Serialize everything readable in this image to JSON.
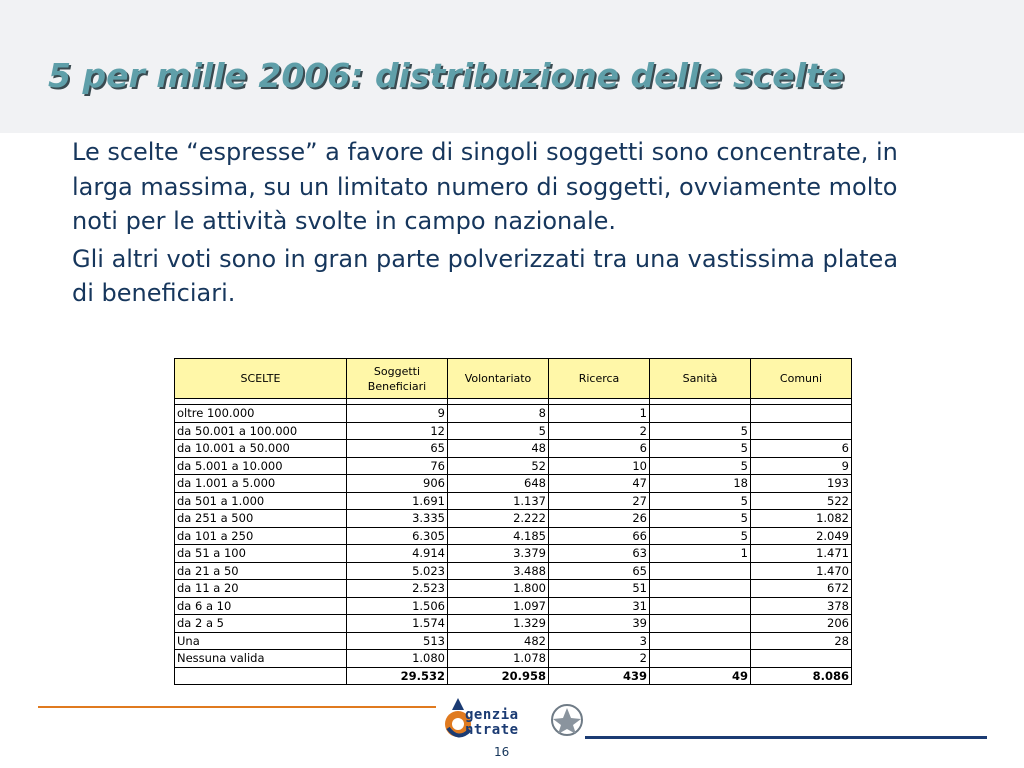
{
  "slide": {
    "title": "5 per mille 2006: distribuzione delle scelte",
    "paragraphs": [
      "Le scelte “espresse” a favore di singoli soggetti sono concentrate, in larga massima, su un limitato numero di soggetti, ovviamente molto noti per le attività svolte in campo nazionale.",
      "Gli altri voti sono in gran parte polverizzati tra una vastissima platea di beneficiari."
    ],
    "page_number": "16"
  },
  "table": {
    "headers": [
      "SCELTE",
      "Soggetti Beneficiari",
      "Volontariato",
      "Ricerca",
      "Sanità",
      "Comuni"
    ],
    "rows": [
      [
        "oltre 100.000",
        "9",
        "8",
        "1",
        "",
        ""
      ],
      [
        "da 50.001 a 100.000",
        "12",
        "5",
        "2",
        "5",
        ""
      ],
      [
        "da 10.001 a 50.000",
        "65",
        "48",
        "6",
        "5",
        "6"
      ],
      [
        "da 5.001 a 10.000",
        "76",
        "52",
        "10",
        "5",
        "9"
      ],
      [
        "da 1.001 a 5.000",
        "906",
        "648",
        "47",
        "18",
        "193"
      ],
      [
        "da 501 a 1.000",
        "1.691",
        "1.137",
        "27",
        "5",
        "522"
      ],
      [
        "da 251 a 500",
        "3.335",
        "2.222",
        "26",
        "5",
        "1.082"
      ],
      [
        "da 101 a 250",
        "6.305",
        "4.185",
        "66",
        "5",
        "2.049"
      ],
      [
        "da 51 a 100",
        "4.914",
        "3.379",
        "63",
        "1",
        "1.471"
      ],
      [
        "da 21 a 50",
        "5.023",
        "3.488",
        "65",
        "",
        "1.470"
      ],
      [
        "da 11 a 20",
        "2.523",
        "1.800",
        "51",
        "",
        "672"
      ],
      [
        "da 6 a 10",
        "1.506",
        "1.097",
        "31",
        "",
        "378"
      ],
      [
        "da 2 a 5",
        "1.574",
        "1.329",
        "39",
        "",
        "206"
      ],
      [
        "Una",
        "513",
        "482",
        "3",
        "",
        "28"
      ],
      [
        "Nessuna valida",
        "1.080",
        "1.078",
        "2",
        "",
        ""
      ]
    ],
    "totals": [
      "",
      "29.532",
      "20.958",
      "439",
      "49",
      "8.086"
    ]
  },
  "footer": {
    "logo_line1": "genzia",
    "logo_line2": "ntrate",
    "logo_icon": "agenzia-entrate-logo-icon",
    "emblem_icon": "italian-republic-emblem-icon"
  },
  "colors": {
    "title": "#5f9fa9",
    "body_text": "#16365c",
    "header_band": "#f1f2f4",
    "table_header_bg": "#fff7a8",
    "footer_orange": "#e07a1f",
    "footer_navy": "#1b3b73"
  }
}
